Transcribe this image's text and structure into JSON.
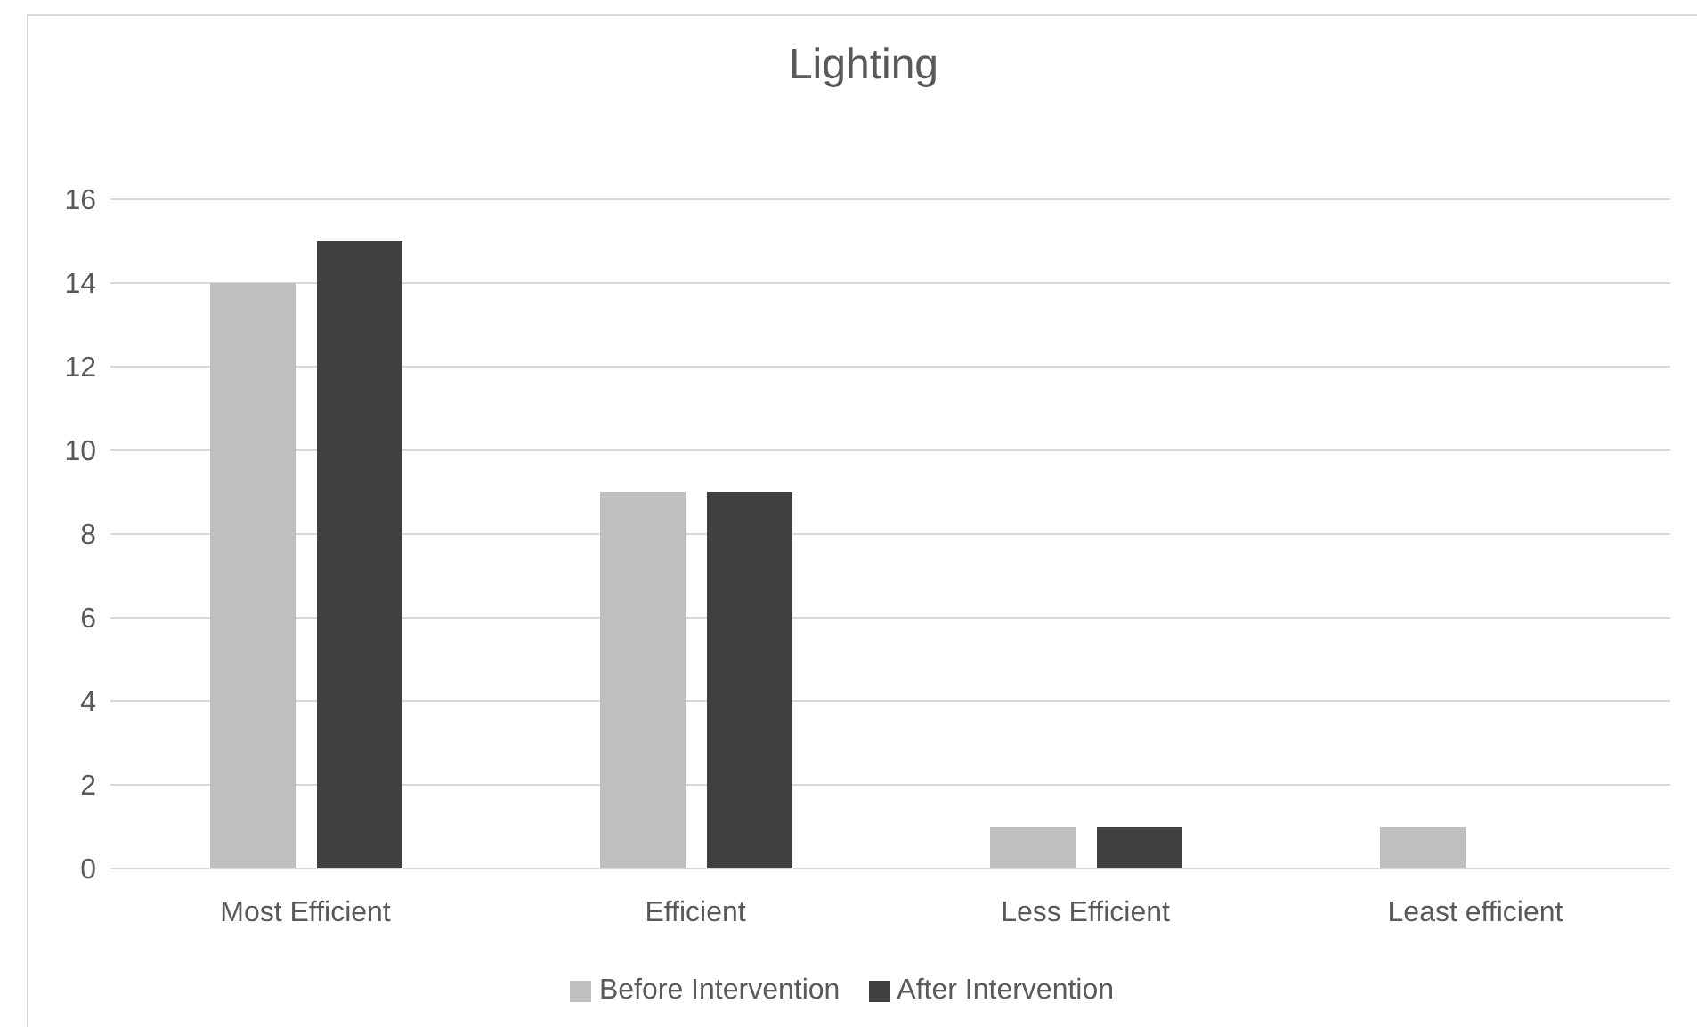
{
  "chart_data": {
    "type": "bar",
    "title": "Lighting",
    "categories": [
      "Most Efficient",
      "Efficient",
      "Less Efficient",
      "Least efficient"
    ],
    "series": [
      {
        "name": "Before Intervention",
        "color": "#bfbfbf",
        "values": [
          14,
          9,
          1,
          1
        ]
      },
      {
        "name": "After Intervention",
        "color": "#404040",
        "values": [
          15,
          9,
          1,
          0
        ]
      }
    ],
    "ylim": [
      0,
      16
    ],
    "yticks": [
      0,
      2,
      4,
      6,
      8,
      10,
      12,
      14,
      16
    ],
    "grid": "y",
    "legend": "bottom"
  }
}
